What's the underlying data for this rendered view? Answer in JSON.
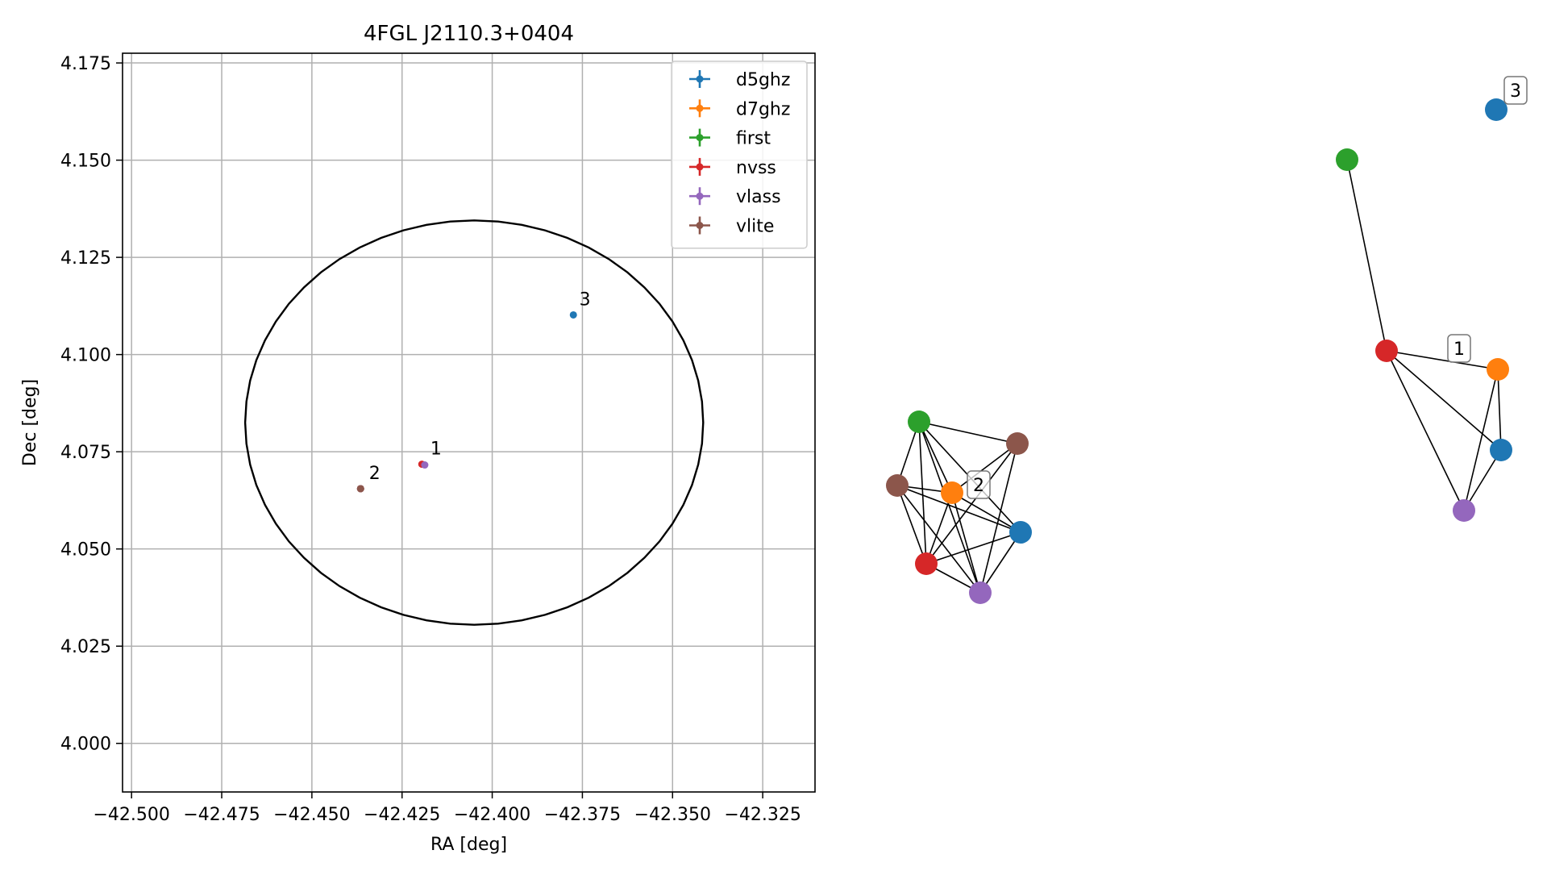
{
  "chart_data": [
    {
      "type": "scatter",
      "title": "4FGL J2110.3+0404",
      "xlabel": "RA [deg]",
      "ylabel": "Dec [deg]",
      "xlim": [
        -42.5025,
        -42.3105
      ],
      "ylim": [
        3.9875,
        4.1775
      ],
      "xticks": [
        -42.5,
        -42.475,
        -42.45,
        -42.425,
        -42.4,
        -42.375,
        -42.35,
        -42.325
      ],
      "xtick_labels": [
        "−42.500",
        "−42.475",
        "−42.450",
        "−42.425",
        "−42.400",
        "−42.375",
        "−42.350",
        "−42.325"
      ],
      "yticks": [
        4.0,
        4.025,
        4.05,
        4.075,
        4.1,
        4.125,
        4.15,
        4.175
      ],
      "ytick_labels": [
        "4.000",
        "4.025",
        "4.050",
        "4.075",
        "4.100",
        "4.125",
        "4.150",
        "4.175"
      ],
      "grid": true,
      "legend_position": "top-right",
      "ellipse": {
        "center": [
          -42.405,
          4.0825
        ],
        "ra_half_width": 0.0635,
        "dec_half_height": 0.052
      },
      "series": [
        {
          "name": "d5ghz",
          "color": "#1f77b4",
          "points": [
            {
              "x": -42.3775,
              "y": 4.1102
            }
          ]
        },
        {
          "name": "d7ghz",
          "color": "#ff7f0e",
          "points": [
            {
              "x": -42.4365,
              "y": 4.0655
            }
          ]
        },
        {
          "name": "first",
          "color": "#2ca02c",
          "points": [
            {
              "x": -42.4365,
              "y": 4.0655
            }
          ]
        },
        {
          "name": "nvss",
          "color": "#d62728",
          "points": [
            {
              "x": -42.4195,
              "y": 4.0718
            },
            {
              "x": -42.4365,
              "y": 4.0655
            }
          ]
        },
        {
          "name": "vlass",
          "color": "#9467bd",
          "points": [
            {
              "x": -42.4187,
              "y": 4.0716
            },
            {
              "x": -42.4365,
              "y": 4.0655
            }
          ]
        },
        {
          "name": "vlite",
          "color": "#8c564b",
          "points": [
            {
              "x": -42.4365,
              "y": 4.0655
            }
          ]
        }
      ],
      "annotations": [
        {
          "text": "1",
          "x": -42.4185,
          "y": 4.0735
        },
        {
          "text": "2",
          "x": -42.4355,
          "y": 4.0672
        },
        {
          "text": "3",
          "x": -42.3772,
          "y": 4.1118
        }
      ]
    },
    {
      "type": "network",
      "nodes": [
        {
          "id": "g2-first",
          "group": 2,
          "color": "#2ca02c"
        },
        {
          "id": "g2-vlite",
          "group": 2,
          "color": "#8c564b"
        },
        {
          "id": "g2-vlite-b",
          "group": 2,
          "color": "#8c564b"
        },
        {
          "id": "g2-d7ghz",
          "group": 2,
          "color": "#ff7f0e"
        },
        {
          "id": "g2-d5ghz",
          "group": 2,
          "color": "#1f77b4"
        },
        {
          "id": "g2-nvss",
          "group": 2,
          "color": "#d62728"
        },
        {
          "id": "g2-vlass",
          "group": 2,
          "color": "#9467bd"
        },
        {
          "id": "g1-first",
          "group": 1,
          "color": "#2ca02c"
        },
        {
          "id": "g1-nvss",
          "group": 1,
          "color": "#d62728"
        },
        {
          "id": "g1-d7ghz",
          "group": 1,
          "color": "#ff7f0e"
        },
        {
          "id": "g1-d5ghz",
          "group": 1,
          "color": "#1f77b4"
        },
        {
          "id": "g1-vlass",
          "group": 1,
          "color": "#9467bd"
        },
        {
          "id": "g3-d5ghz",
          "group": 3,
          "color": "#1f77b4"
        }
      ],
      "edges": [
        [
          "g2-first",
          "g2-vlite"
        ],
        [
          "g2-first",
          "g2-vlite-b"
        ],
        [
          "g2-first",
          "g2-d7ghz"
        ],
        [
          "g2-first",
          "g2-d5ghz"
        ],
        [
          "g2-first",
          "g2-nvss"
        ],
        [
          "g2-first",
          "g2-vlass"
        ],
        [
          "g2-vlite",
          "g2-d7ghz"
        ],
        [
          "g2-vlite",
          "g2-nvss"
        ],
        [
          "g2-vlite",
          "g2-vlass"
        ],
        [
          "g2-vlite-b",
          "g2-d7ghz"
        ],
        [
          "g2-vlite-b",
          "g2-d5ghz"
        ],
        [
          "g2-vlite-b",
          "g2-nvss"
        ],
        [
          "g2-vlite-b",
          "g2-vlass"
        ],
        [
          "g2-d7ghz",
          "g2-d5ghz"
        ],
        [
          "g2-d7ghz",
          "g2-nvss"
        ],
        [
          "g2-d7ghz",
          "g2-vlass"
        ],
        [
          "g2-d5ghz",
          "g2-nvss"
        ],
        [
          "g2-d5ghz",
          "g2-vlass"
        ],
        [
          "g2-nvss",
          "g2-vlass"
        ],
        [
          "g1-first",
          "g1-nvss"
        ],
        [
          "g1-nvss",
          "g1-d7ghz"
        ],
        [
          "g1-nvss",
          "g1-d5ghz"
        ],
        [
          "g1-nvss",
          "g1-vlass"
        ],
        [
          "g1-d7ghz",
          "g1-d5ghz"
        ],
        [
          "g1-d7ghz",
          "g1-vlass"
        ],
        [
          "g1-d5ghz",
          "g1-vlass"
        ]
      ],
      "labels": [
        {
          "text": "1",
          "group": 1
        },
        {
          "text": "2",
          "group": 2
        },
        {
          "text": "3",
          "group": 3
        }
      ]
    }
  ]
}
